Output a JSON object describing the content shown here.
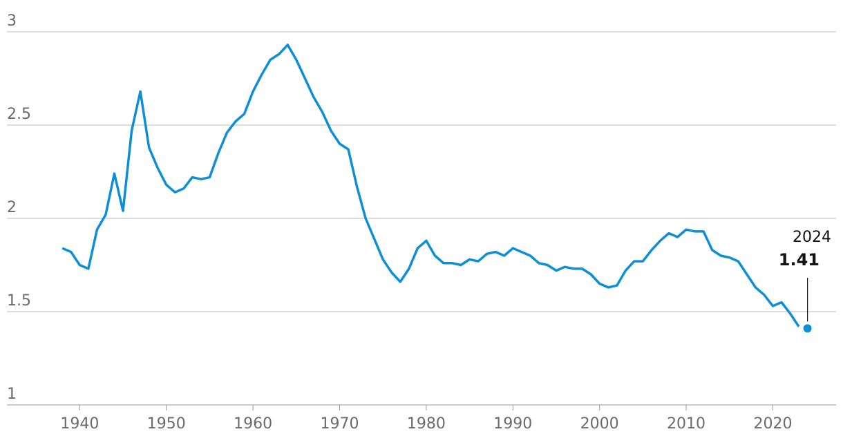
{
  "chart_data": {
    "type": "line",
    "x": [
      1938,
      1939,
      1940,
      1941,
      1942,
      1943,
      1944,
      1945,
      1946,
      1947,
      1948,
      1949,
      1950,
      1951,
      1952,
      1953,
      1954,
      1955,
      1956,
      1957,
      1958,
      1959,
      1960,
      1961,
      1962,
      1963,
      1964,
      1965,
      1966,
      1967,
      1968,
      1969,
      1970,
      1971,
      1972,
      1973,
      1974,
      1975,
      1976,
      1977,
      1978,
      1979,
      1980,
      1981,
      1982,
      1983,
      1984,
      1985,
      1986,
      1987,
      1988,
      1989,
      1990,
      1991,
      1992,
      1993,
      1994,
      1995,
      1996,
      1997,
      1998,
      1999,
      2000,
      2001,
      2002,
      2003,
      2004,
      2005,
      2006,
      2007,
      2008,
      2009,
      2010,
      2011,
      2012,
      2013,
      2014,
      2015,
      2016,
      2017,
      2018,
      2019,
      2020,
      2021,
      2022,
      2023
    ],
    "series": [
      {
        "color": "#0c8fd6",
        "values": [
          1.84,
          1.82,
          1.75,
          1.73,
          1.94,
          2.02,
          2.24,
          2.04,
          2.47,
          2.68,
          2.38,
          2.27,
          2.18,
          2.14,
          2.16,
          2.22,
          2.21,
          2.22,
          2.35,
          2.46,
          2.52,
          2.56,
          2.68,
          2.77,
          2.85,
          2.88,
          2.93,
          2.85,
          2.75,
          2.65,
          2.57,
          2.47,
          2.4,
          2.37,
          2.17,
          2.0,
          1.89,
          1.78,
          1.71,
          1.66,
          1.73,
          1.84,
          1.88,
          1.8,
          1.76,
          1.76,
          1.75,
          1.78,
          1.77,
          1.81,
          1.82,
          1.8,
          1.84,
          1.82,
          1.8,
          1.76,
          1.75,
          1.72,
          1.74,
          1.73,
          1.73,
          1.7,
          1.65,
          1.63,
          1.64,
          1.72,
          1.77,
          1.77,
          1.83,
          1.88,
          1.92,
          1.9,
          1.94,
          1.93,
          1.93,
          1.83,
          1.8,
          1.79,
          1.77,
          1.7,
          1.63,
          1.59,
          1.53,
          1.55,
          1.49,
          1.42
        ]
      }
    ],
    "annotation": {
      "x": 2024,
      "value": 1.41
    },
    "xlim": [
      1931.6,
      2027.3
    ],
    "ylim": [
      1,
      3
    ],
    "xticks": [
      1940,
      1950,
      1960,
      1970,
      1980,
      1990,
      2000,
      2010,
      2020
    ],
    "yticks": [
      1,
      1.5,
      2,
      2.5,
      3
    ],
    "grid": true
  }
}
